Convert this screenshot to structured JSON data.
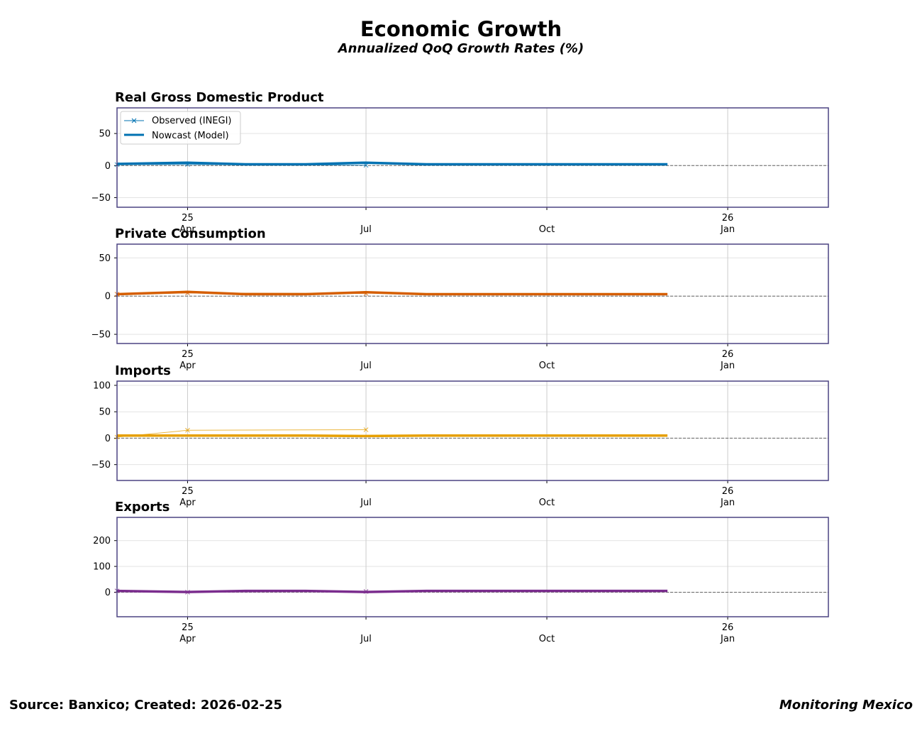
{
  "header": {
    "title": "Economic Growth",
    "subtitle": "Annualized QoQ Growth Rates (%)"
  },
  "footer": {
    "source": "Source: Banxico; Created: 2026-02-25",
    "brand": "Monitoring Mexico"
  },
  "legend": {
    "observed": "Observed (INEGI)",
    "nowcast": "Nowcast (Model)"
  },
  "chart_data": [
    {
      "type": "line",
      "title": "Real Gross Domestic Product",
      "color": "#0072B2",
      "ylim": [
        -65,
        90
      ],
      "yticks": [
        -50,
        0,
        50
      ],
      "xlim": [
        0,
        11.8
      ],
      "xticks": [
        {
          "x": 1.17,
          "top": "25",
          "bottom": "Apr"
        },
        {
          "x": 4.13,
          "top": "",
          "bottom": "Jul"
        },
        {
          "x": 7.13,
          "top": "",
          "bottom": "Oct"
        },
        {
          "x": 10.13,
          "top": "26",
          "bottom": "Jan"
        }
      ],
      "series": [
        {
          "name": "Observed (INEGI)",
          "x": [
            0,
            1.17,
            4.13
          ],
          "values": [
            1.5,
            1.8,
            0.5
          ]
        },
        {
          "name": "Nowcast (Model)",
          "x": [
            0,
            1.17,
            2.13,
            3.13,
            4.13,
            5.13,
            6.13,
            7.13,
            8.13,
            9.13
          ],
          "values": [
            2.5,
            4.5,
            2.0,
            2.0,
            4.5,
            2.0,
            2.0,
            2.0,
            2.0,
            2.0
          ]
        }
      ]
    },
    {
      "type": "line",
      "title": "Private Consumption",
      "color": "#D55E00",
      "ylim": [
        -62,
        68
      ],
      "yticks": [
        -50,
        0,
        50
      ],
      "xlim": [
        0,
        11.8
      ],
      "xticks": [
        {
          "x": 1.17,
          "top": "25",
          "bottom": "Apr"
        },
        {
          "x": 4.13,
          "top": "",
          "bottom": "Jul"
        },
        {
          "x": 7.13,
          "top": "",
          "bottom": "Oct"
        },
        {
          "x": 10.13,
          "top": "26",
          "bottom": "Jan"
        }
      ],
      "series": [
        {
          "name": "Observed (INEGI)",
          "x": [
            0,
            1.17,
            4.13
          ],
          "values": [
            2.5,
            4.0,
            3.5
          ]
        },
        {
          "name": "Nowcast (Model)",
          "x": [
            0,
            1.17,
            2.13,
            3.13,
            4.13,
            5.13,
            6.13,
            7.13,
            8.13,
            9.13
          ],
          "values": [
            2.5,
            5.5,
            2.5,
            2.5,
            5.0,
            2.5,
            2.5,
            2.5,
            2.5,
            2.5
          ]
        }
      ]
    },
    {
      "type": "line",
      "title": "Imports",
      "color": "#E69F00",
      "ylim": [
        -80,
        108
      ],
      "yticks": [
        -50,
        0,
        50,
        100
      ],
      "xlim": [
        0,
        11.8
      ],
      "xticks": [
        {
          "x": 1.17,
          "top": "25",
          "bottom": "Apr"
        },
        {
          "x": 4.13,
          "top": "",
          "bottom": "Jul"
        },
        {
          "x": 7.13,
          "top": "",
          "bottom": "Oct"
        },
        {
          "x": 10.13,
          "top": "26",
          "bottom": "Jan"
        }
      ],
      "series": [
        {
          "name": "Observed (INEGI)",
          "x": [
            0,
            1.17,
            4.13
          ],
          "values": [
            2.0,
            15.0,
            16.0
          ]
        },
        {
          "name": "Nowcast (Model)",
          "x": [
            0,
            1.17,
            2.13,
            3.13,
            4.13,
            5.13,
            6.13,
            7.13,
            8.13,
            9.13
          ],
          "values": [
            5.0,
            5.0,
            5.0,
            5.0,
            4.0,
            5.0,
            5.0,
            5.0,
            5.0,
            5.0
          ]
        }
      ]
    },
    {
      "type": "line",
      "title": "Exports",
      "color": "#7B2D8E",
      "ylim": [
        -95,
        290
      ],
      "yticks": [
        0,
        100,
        200
      ],
      "xlim": [
        0,
        11.8
      ],
      "xticks": [
        {
          "x": 1.17,
          "top": "25",
          "bottom": "Apr"
        },
        {
          "x": 4.13,
          "top": "",
          "bottom": "Jul"
        },
        {
          "x": 7.13,
          "top": "",
          "bottom": "Oct"
        },
        {
          "x": 10.13,
          "top": "26",
          "bottom": "Jan"
        }
      ],
      "series": [
        {
          "name": "Observed (INEGI)",
          "x": [
            0,
            1.17,
            4.13
          ],
          "values": [
            5.0,
            0.0,
            3.0
          ]
        },
        {
          "name": "Nowcast (Model)",
          "x": [
            0,
            1.17,
            2.13,
            3.13,
            4.13,
            5.13,
            6.13,
            7.13,
            8.13,
            9.13
          ],
          "values": [
            5.0,
            1.0,
            5.0,
            5.0,
            1.0,
            5.0,
            5.0,
            5.0,
            5.0,
            5.0
          ]
        }
      ]
    }
  ]
}
